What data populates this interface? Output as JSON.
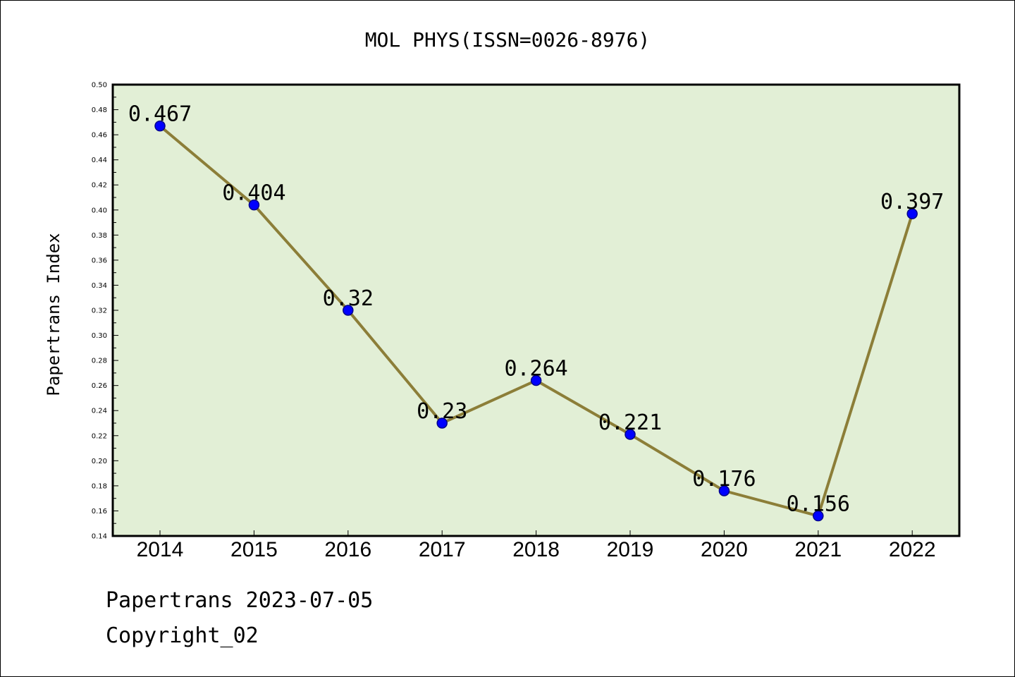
{
  "chart_data": {
    "type": "line",
    "title": "MOL PHYS(ISSN=0026-8976)",
    "xlabel": "",
    "ylabel": "Papertrans Index",
    "categories": [
      "2014",
      "2015",
      "2016",
      "2017",
      "2018",
      "2019",
      "2020",
      "2021",
      "2022"
    ],
    "values": [
      0.467,
      0.404,
      0.32,
      0.23,
      0.264,
      0.221,
      0.176,
      0.156,
      0.397
    ],
    "data_labels": [
      "0.467",
      "0.404",
      "0.32",
      "0.23",
      "0.264",
      "0.221",
      "0.176",
      "0.156",
      "0.397"
    ],
    "ylim": [
      0.14,
      0.5
    ],
    "yticks": [
      "0.14",
      "0.16",
      "0.18",
      "0.20",
      "0.22",
      "0.24",
      "0.26",
      "0.28",
      "0.30",
      "0.32",
      "0.34",
      "0.36",
      "0.38",
      "0.40",
      "0.42",
      "0.44",
      "0.46",
      "0.48",
      "0.50"
    ],
    "grid": false,
    "colors": {
      "plot_background": "#e2efd6",
      "line": "#8c7e38",
      "marker": "#0000ff",
      "marker_edge": "#00008b"
    }
  },
  "footer": {
    "line1": "Papertrans 2023-07-05",
    "line2": "Copyright_02"
  }
}
